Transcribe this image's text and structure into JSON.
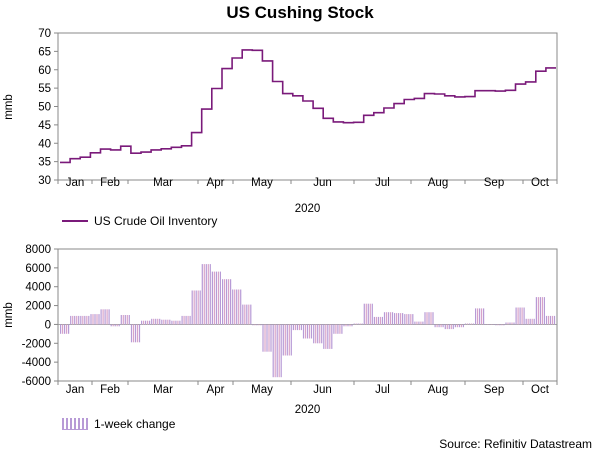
{
  "chart_data": [
    {
      "type": "line",
      "title": "US Cushing Stock",
      "ylabel": "mmb",
      "xlabel": "2020",
      "ylim": [
        30,
        70
      ],
      "yticks": [
        "70",
        "65",
        "60",
        "55",
        "50",
        "45",
        "40",
        "35",
        "30"
      ],
      "month_labels": [
        "Jan",
        "Feb",
        "Mar",
        "Apr",
        "May",
        "Jun",
        "Jul",
        "Aug",
        "Sep",
        "Oct"
      ],
      "legend": "US Crude Oil Inventory",
      "color": "#7a1a7a",
      "series": [
        {
          "name": "US Crude Oil Inventory",
          "values": [
            34.8,
            35.8,
            36.2,
            37.4,
            38.4,
            38.2,
            39.2,
            37.3,
            37.6,
            38.2,
            38.5,
            38.9,
            39.3,
            42.9,
            49.3,
            54.9,
            60.3,
            63.2,
            65.4,
            65.3,
            62.4,
            56.8,
            53.5,
            52.9,
            51.5,
            49.5,
            46.8,
            45.8,
            45.6,
            45.7,
            47.6,
            48.3,
            49.6,
            50.8,
            51.9,
            52.2,
            53.5,
            53.4,
            52.9,
            52.6,
            52.7,
            54.3,
            54.3,
            54.2,
            54.4,
            56.1,
            56.7,
            59.6,
            60.5
          ]
        }
      ]
    },
    {
      "type": "bar",
      "ylabel": "mmb",
      "xlabel": "2020",
      "ylim": [
        -6000,
        8000
      ],
      "yticks": [
        "8000",
        "6000",
        "4000",
        "2000",
        "0",
        "-2000",
        "-4000",
        "-6000"
      ],
      "month_labels": [
        "Jan",
        "Feb",
        "Mar",
        "Apr",
        "May",
        "Jun",
        "Jul",
        "Aug",
        "Sep",
        "Oct"
      ],
      "legend": "1-week change",
      "color": "#b79ad6",
      "series": [
        {
          "name": "1-week change",
          "values": [
            -1000,
            900,
            900,
            1100,
            1600,
            -200,
            1000,
            -1900,
            400,
            600,
            500,
            400,
            900,
            3600,
            6400,
            5600,
            4800,
            3700,
            2100,
            -100,
            -2900,
            -5600,
            -3300,
            -600,
            -1500,
            -2000,
            -2600,
            -1000,
            -200,
            100,
            2200,
            800,
            1300,
            1200,
            1100,
            300,
            1300,
            -300,
            -500,
            -300,
            100,
            1700,
            0,
            -100,
            200,
            1800,
            600,
            2900,
            900
          ]
        }
      ]
    }
  ],
  "source": "Source: Refinitiv Datastream"
}
